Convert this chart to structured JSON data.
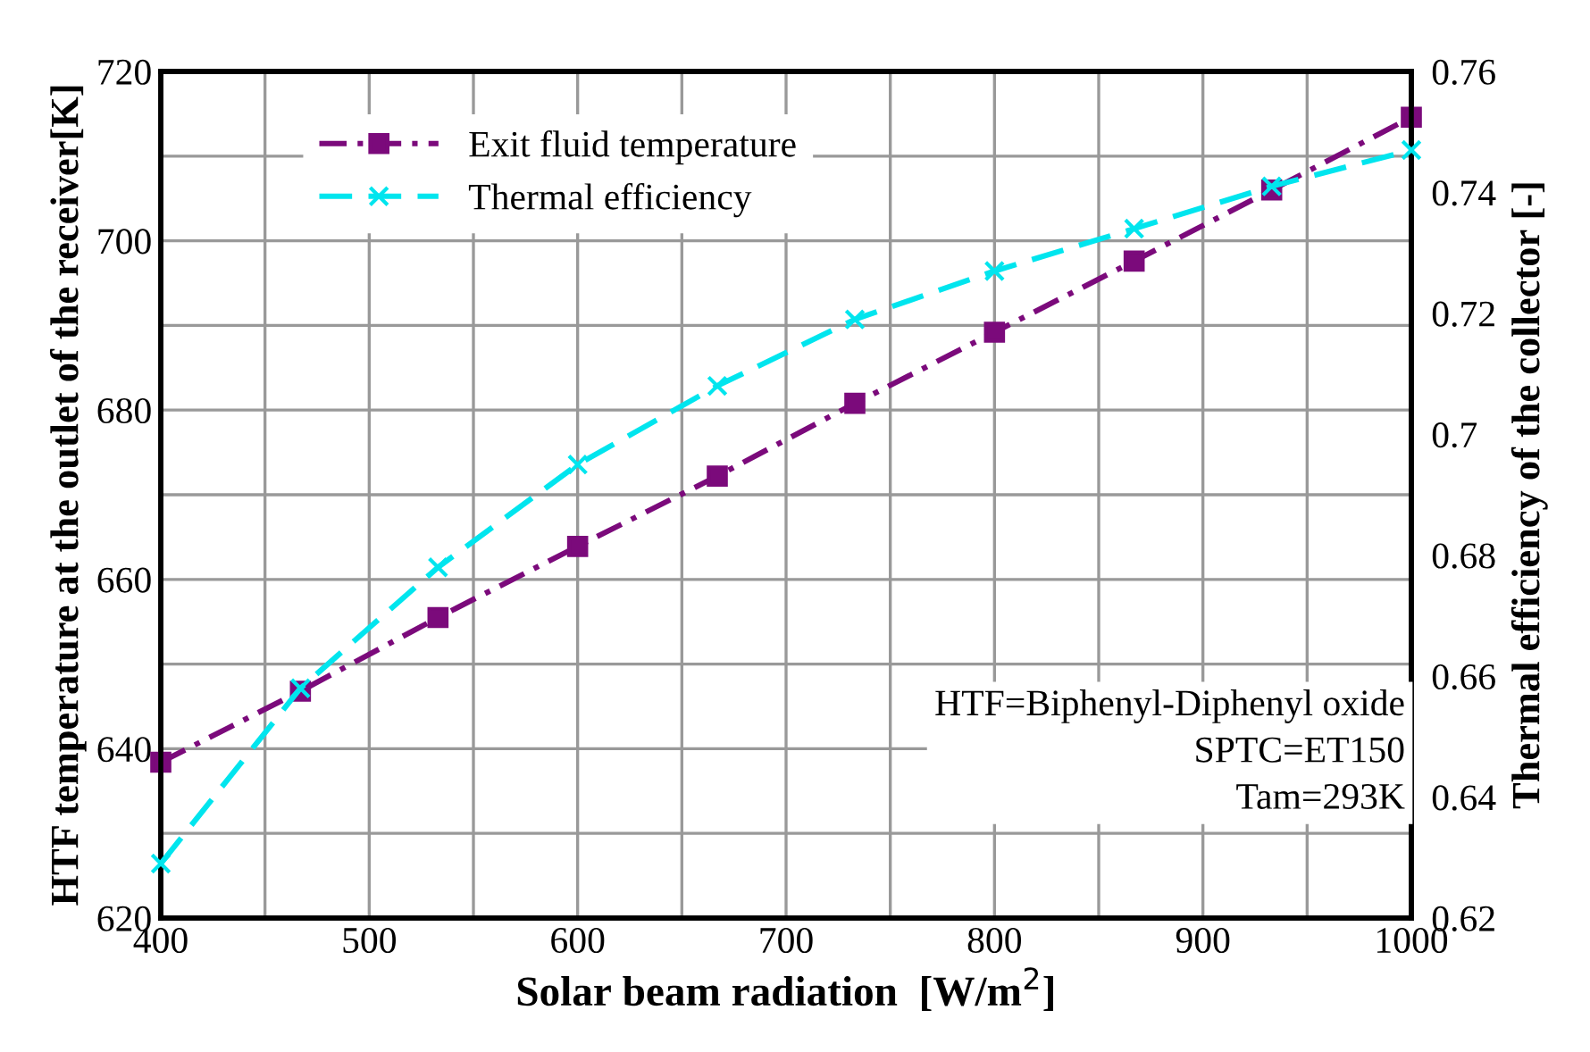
{
  "chart_data": {
    "type": "line",
    "xlabel": "Solar beam radiation  [W/m$^{2}$]",
    "ylabel": "HTF temperature at the outlet of the receiver[K]",
    "y2label": "Thermal efficiency of the collector [-]",
    "x": [
      400,
      467,
      533,
      600,
      667,
      733,
      800,
      867,
      933,
      1000
    ],
    "series": [
      {
        "name": "Exit fluid temperature",
        "color": "#7b0a7b",
        "marker": "square",
        "line_style": "dashdot",
        "values": [
          638.4,
          646.8,
          655.5,
          663.9,
          672.2,
          680.8,
          689.2,
          697.6,
          706.0,
          714.6
        ]
      },
      {
        "name": "Thermal efficiency",
        "color": "#00e5ee",
        "marker": "cross",
        "line_style": "dashed",
        "axis": "y2",
        "values": [
          0.629,
          0.658,
          0.678,
          0.695,
          0.708,
          0.719,
          0.727,
          0.734,
          0.741,
          0.747
        ]
      }
    ],
    "xlim": [
      400,
      1000
    ],
    "xticks": [
      400,
      {
        "value": 450,
        "label": null
      },
      500,
      {
        "value": 550,
        "label": null
      },
      600,
      {
        "value": 650,
        "label": null
      },
      700,
      {
        "value": 750,
        "label": null
      },
      800,
      {
        "value": 850,
        "label": null
      },
      900,
      {
        "value": 950,
        "label": null
      },
      1000
    ],
    "ylim": [
      620,
      720
    ],
    "yticks": [
      620,
      {
        "value": 630,
        "label": null
      },
      640,
      {
        "value": 650,
        "label": null
      },
      660,
      {
        "value": 670,
        "label": null
      },
      680,
      {
        "value": 690,
        "label": null
      },
      700,
      {
        "value": 710,
        "label": null
      },
      720
    ],
    "y2lim": [
      0.62,
      0.76
    ],
    "y2ticks": [
      0.62,
      0.64,
      0.66,
      0.68,
      0.7,
      0.72,
      0.74,
      0.76
    ],
    "grid": true,
    "legend": "top left",
    "annotations": [
      "HTF=Biphenyl-Diphenyl oxide",
      "SPTC=ET150",
      "Tam=293K"
    ]
  }
}
